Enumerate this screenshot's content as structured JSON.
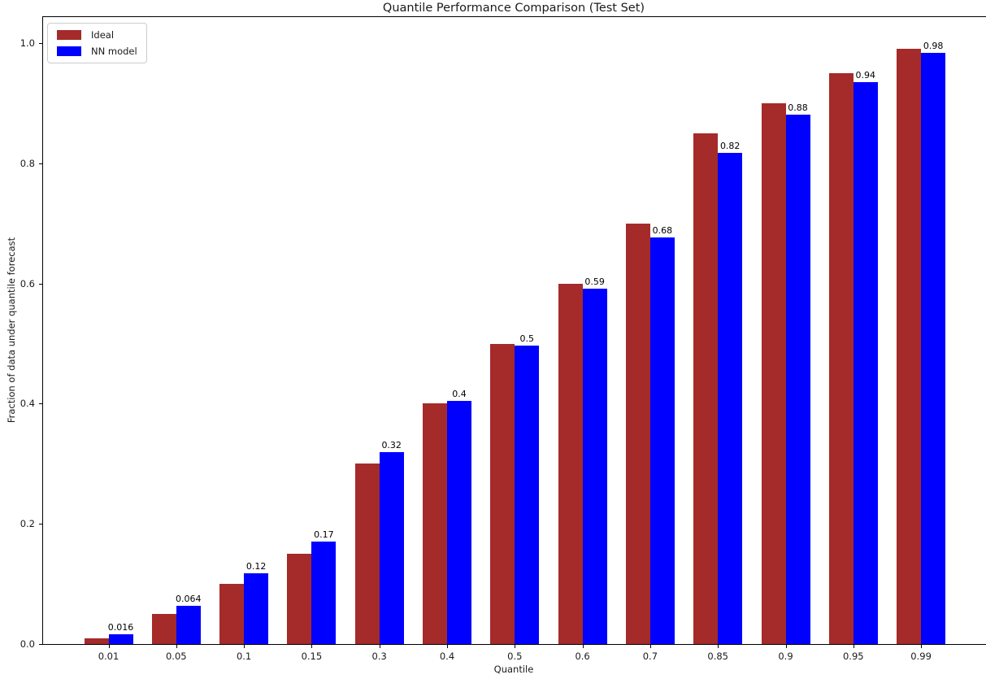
{
  "chart_data": {
    "type": "bar",
    "title": "Quantile Performance Comparison (Test Set)",
    "xlabel": "Quantile",
    "ylabel": "Fraction of data under quantile forecast",
    "categories": [
      "0.01",
      "0.05",
      "0.1",
      "0.15",
      "0.3",
      "0.4",
      "0.5",
      "0.6",
      "0.7",
      "0.85",
      "0.9",
      "0.95",
      "0.99"
    ],
    "series": [
      {
        "name": "Ideal",
        "color": "#A52A2A",
        "values": [
          0.01,
          0.05,
          0.1,
          0.15,
          0.3,
          0.4,
          0.5,
          0.6,
          0.7,
          0.85,
          0.9,
          0.95,
          0.99
        ],
        "labels": []
      },
      {
        "name": "NN model",
        "color": "#0000FF",
        "values": [
          0.016,
          0.064,
          0.118,
          0.171,
          0.32,
          0.404,
          0.497,
          0.592,
          0.677,
          0.817,
          0.881,
          0.935,
          0.984
        ],
        "labels": [
          "0.016",
          "0.064",
          "0.12",
          "0.17",
          "0.32",
          "0.4",
          "0.5",
          "0.59",
          "0.68",
          "0.82",
          "0.88",
          "0.94",
          "0.98"
        ]
      }
    ],
    "ytick_values": [
      0.0,
      0.2,
      0.4,
      0.6,
      0.8,
      1.0
    ],
    "ytick_labels": [
      "0.0",
      "0.2",
      "0.4",
      "0.6",
      "0.8",
      "1.0"
    ],
    "ylim": [
      0,
      1.043
    ],
    "grid": false,
    "legend": {
      "position": "upper-left",
      "entries": [
        "Ideal",
        "NN model"
      ]
    },
    "background_color": "#ffffff"
  }
}
